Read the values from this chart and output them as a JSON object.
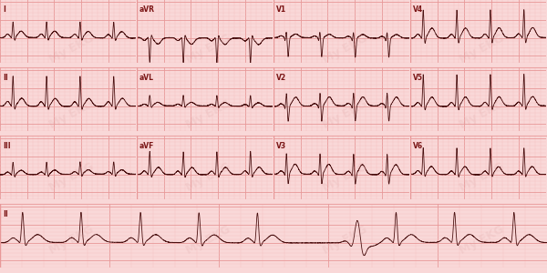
{
  "bg_color": "#f9d8d8",
  "grid_major_color": "#e89898",
  "grid_minor_color": "#f4c0c0",
  "ecg_color": "#4a1010",
  "text_color": "#7a1515",
  "watermark_color": "#dba0a0",
  "fig_width": 6.0,
  "fig_height": 3.0,
  "dpi": 100,
  "row_labels": [
    "I",
    "II",
    "III",
    "II"
  ],
  "lead_labels_row0": [
    "I",
    "aVR",
    "V1",
    "V4"
  ],
  "lead_labels_row1": [
    "II",
    "aVL",
    "V2",
    "V5"
  ],
  "lead_labels_row2": [
    "III",
    "aVF",
    "V3",
    "V6"
  ],
  "n_rows": 4,
  "n_cols": 4,
  "ecg_linewidth": 0.6,
  "label_fontsize": 5.5,
  "watermark_fontsize": 9,
  "watermark_alpha": 0.18
}
